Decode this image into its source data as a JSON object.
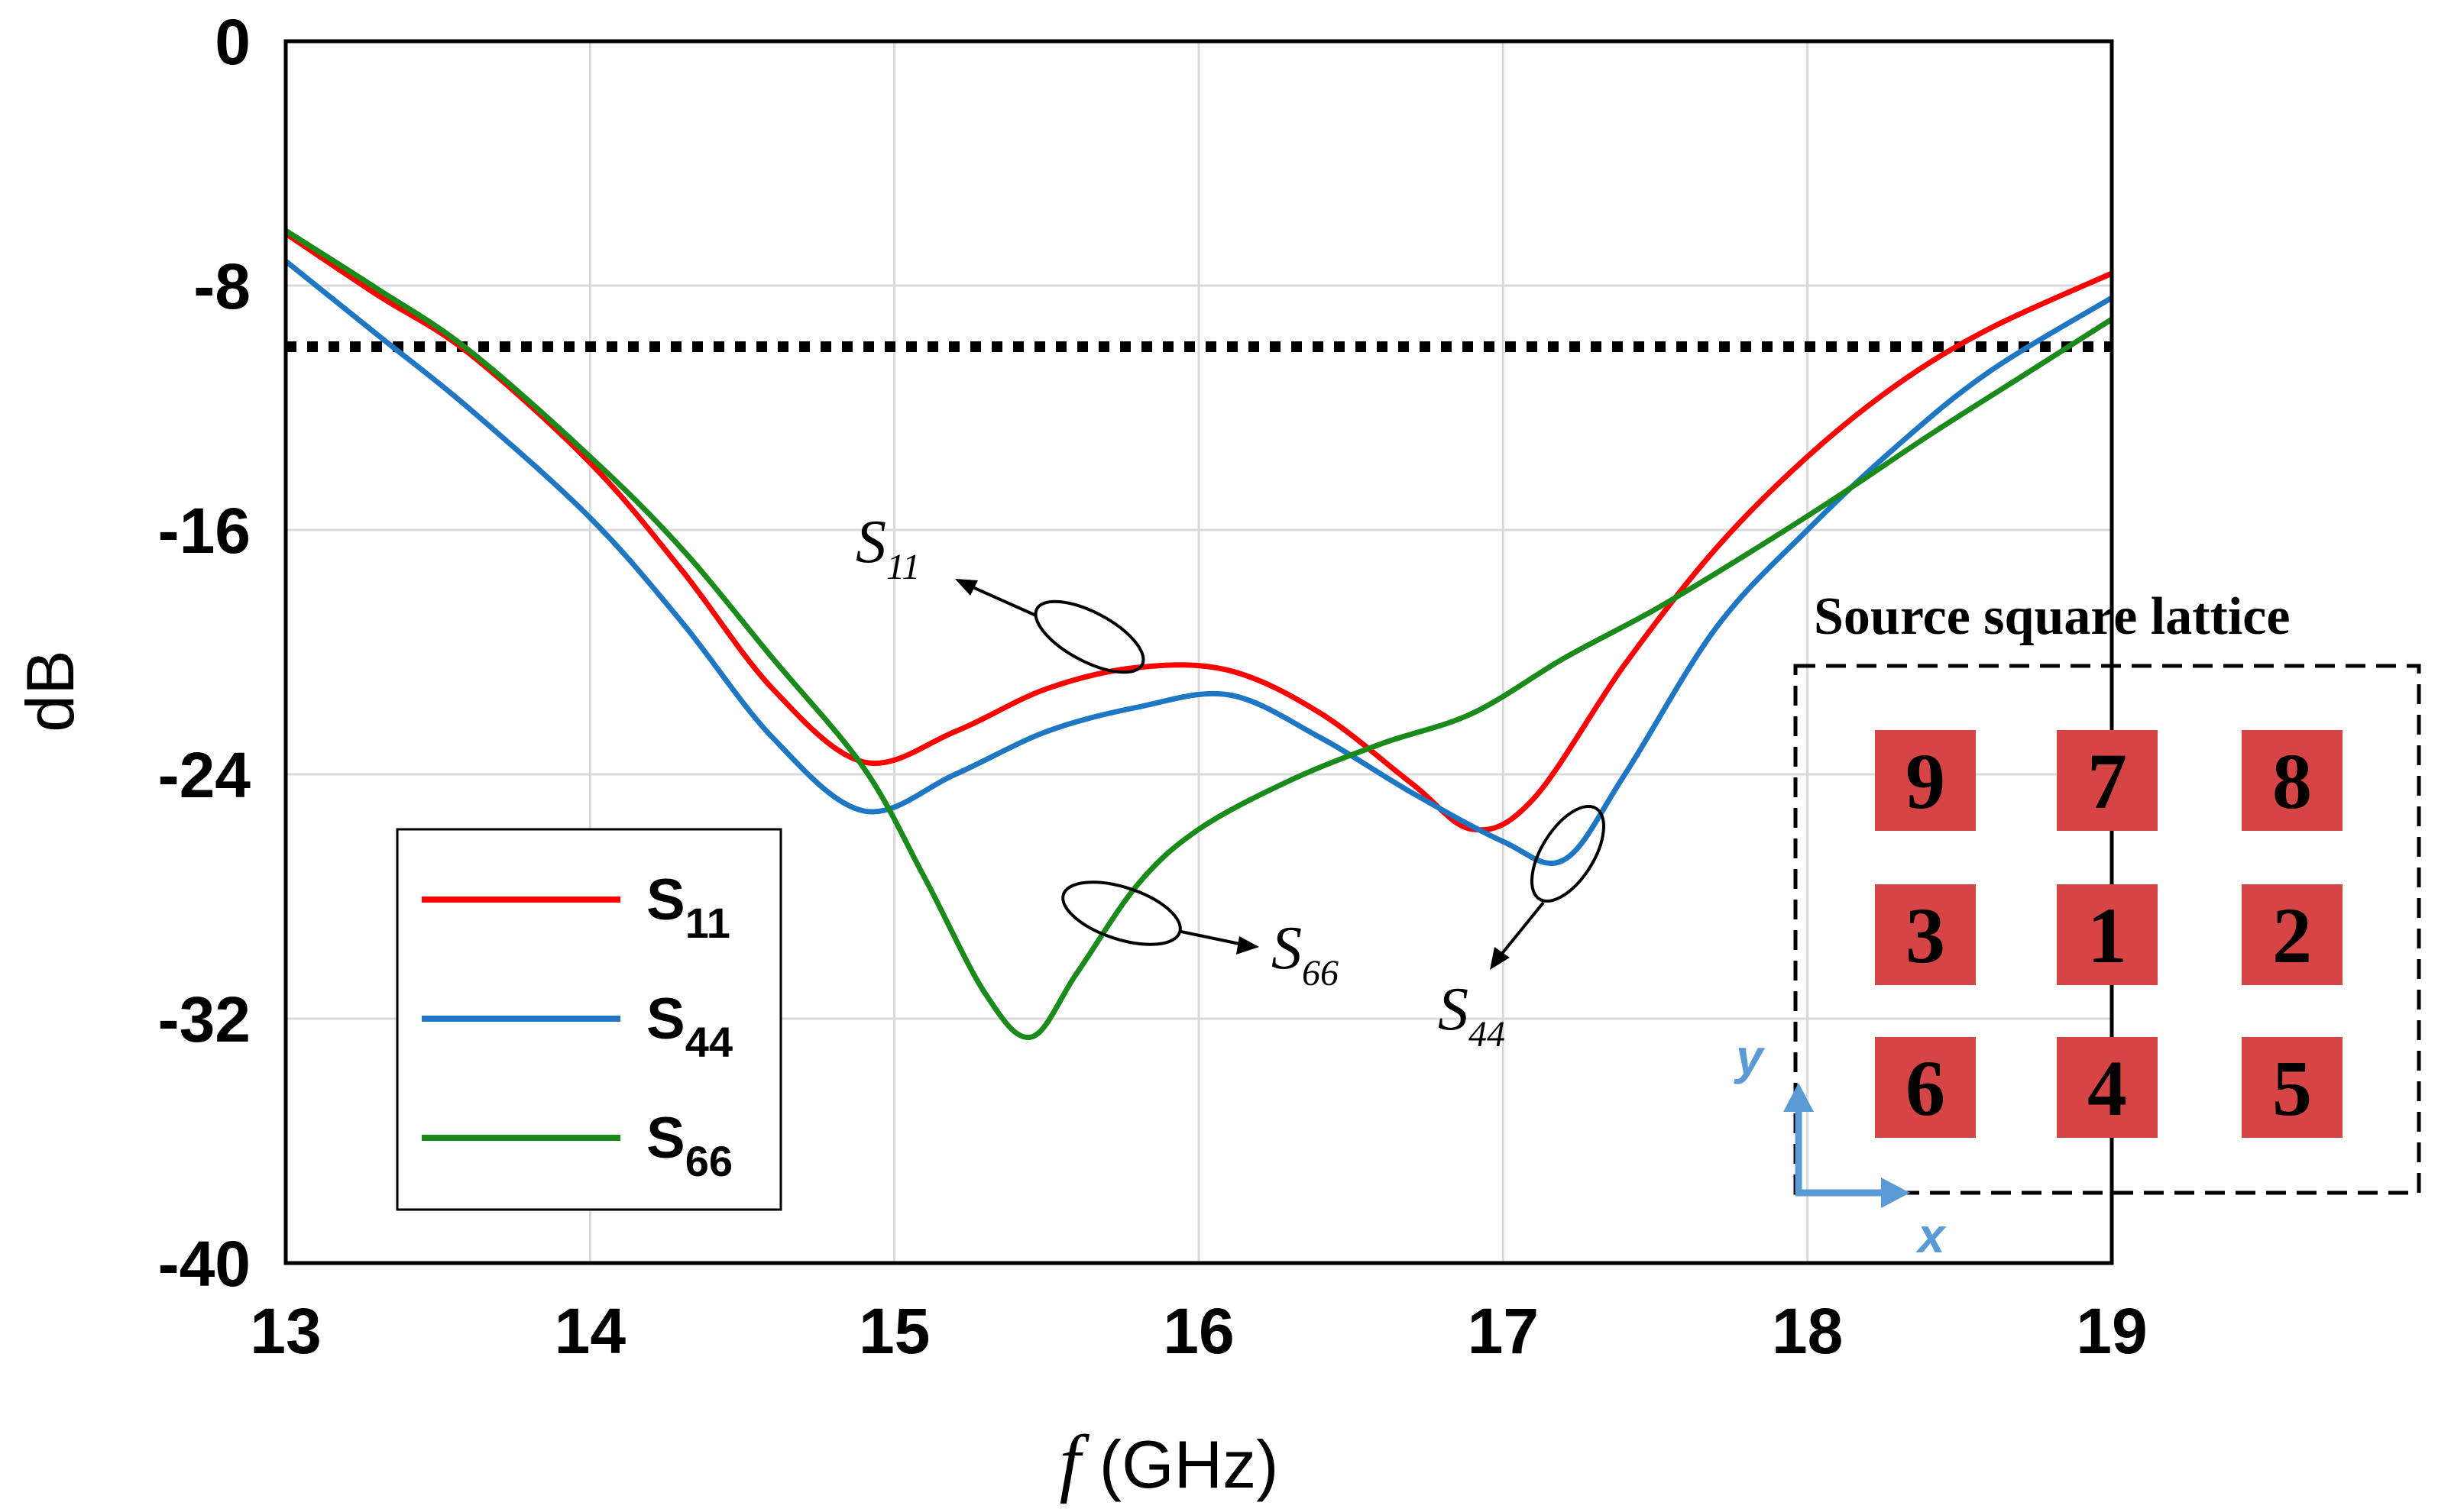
{
  "chart_data": {
    "type": "line",
    "title": "",
    "xlabel_italic": "f",
    "xlabel_rest": " (GHz)",
    "ylabel": "dB",
    "xlim": [
      13,
      19
    ],
    "ylim": [
      -40,
      0
    ],
    "xticks": [
      13,
      14,
      15,
      16,
      17,
      18,
      19
    ],
    "yticks": [
      0,
      -8,
      -16,
      -24,
      -32,
      -40
    ],
    "grid": true,
    "threshold_db": -10,
    "series": [
      {
        "name": "S",
        "sub": "11",
        "color": "#ff0000",
        "x": [
          13.0,
          13.3,
          13.6,
          14.0,
          14.3,
          14.6,
          14.9,
          15.2,
          15.5,
          15.8,
          16.1,
          16.4,
          16.7,
          16.9,
          17.1,
          17.4,
          17.7,
          18.0,
          18.3,
          18.6,
          19.0
        ],
        "y": [
          -6.3,
          -8.3,
          -10.2,
          -13.8,
          -17.3,
          -21.2,
          -23.6,
          -22.6,
          -21.2,
          -20.5,
          -20.6,
          -22.0,
          -24.3,
          -25.8,
          -24.8,
          -20.4,
          -16.6,
          -13.6,
          -11.2,
          -9.4,
          -7.6
        ]
      },
      {
        "name": "S",
        "sub": "44",
        "color": "#1f77c4",
        "x": [
          13.0,
          13.3,
          13.6,
          14.0,
          14.3,
          14.6,
          14.9,
          15.2,
          15.5,
          15.8,
          16.1,
          16.4,
          16.7,
          17.0,
          17.2,
          17.4,
          17.7,
          18.0,
          18.3,
          18.6,
          19.0
        ],
        "y": [
          -7.2,
          -9.6,
          -12.0,
          -15.6,
          -19.0,
          -22.8,
          -25.2,
          -24.0,
          -22.6,
          -21.8,
          -21.4,
          -22.8,
          -24.6,
          -26.2,
          -26.8,
          -24.0,
          -19.2,
          -16.0,
          -13.2,
          -10.8,
          -8.4
        ]
      },
      {
        "name": "S",
        "sub": "66",
        "color": "#1a8a1a",
        "x": [
          13.0,
          13.3,
          13.6,
          14.0,
          14.3,
          14.6,
          14.9,
          15.1,
          15.3,
          15.45,
          15.6,
          15.8,
          16.0,
          16.3,
          16.6,
          16.9,
          17.2,
          17.5,
          17.8,
          18.1,
          18.4,
          18.7,
          19.0
        ],
        "y": [
          -6.2,
          -8.1,
          -10.1,
          -13.6,
          -16.6,
          -20.2,
          -23.8,
          -27.4,
          -31.2,
          -32.6,
          -30.5,
          -27.6,
          -25.8,
          -24.2,
          -23.0,
          -22.0,
          -20.2,
          -18.6,
          -16.8,
          -14.9,
          -12.9,
          -11.0,
          -9.1
        ]
      }
    ],
    "annotations": [
      {
        "main": "S",
        "sub": "11"
      },
      {
        "main": "S",
        "sub": "66"
      },
      {
        "main": "S",
        "sub": "44"
      }
    ],
    "inset": {
      "title": "Source square lattice",
      "grid": [
        [
          "9",
          "7",
          "8"
        ],
        [
          "3",
          "1",
          "2"
        ],
        [
          "6",
          "4",
          "5"
        ]
      ],
      "cell_color": "#d64545",
      "axis_x": "x",
      "axis_y": "y",
      "axis_color": "#5b9bd5"
    }
  }
}
